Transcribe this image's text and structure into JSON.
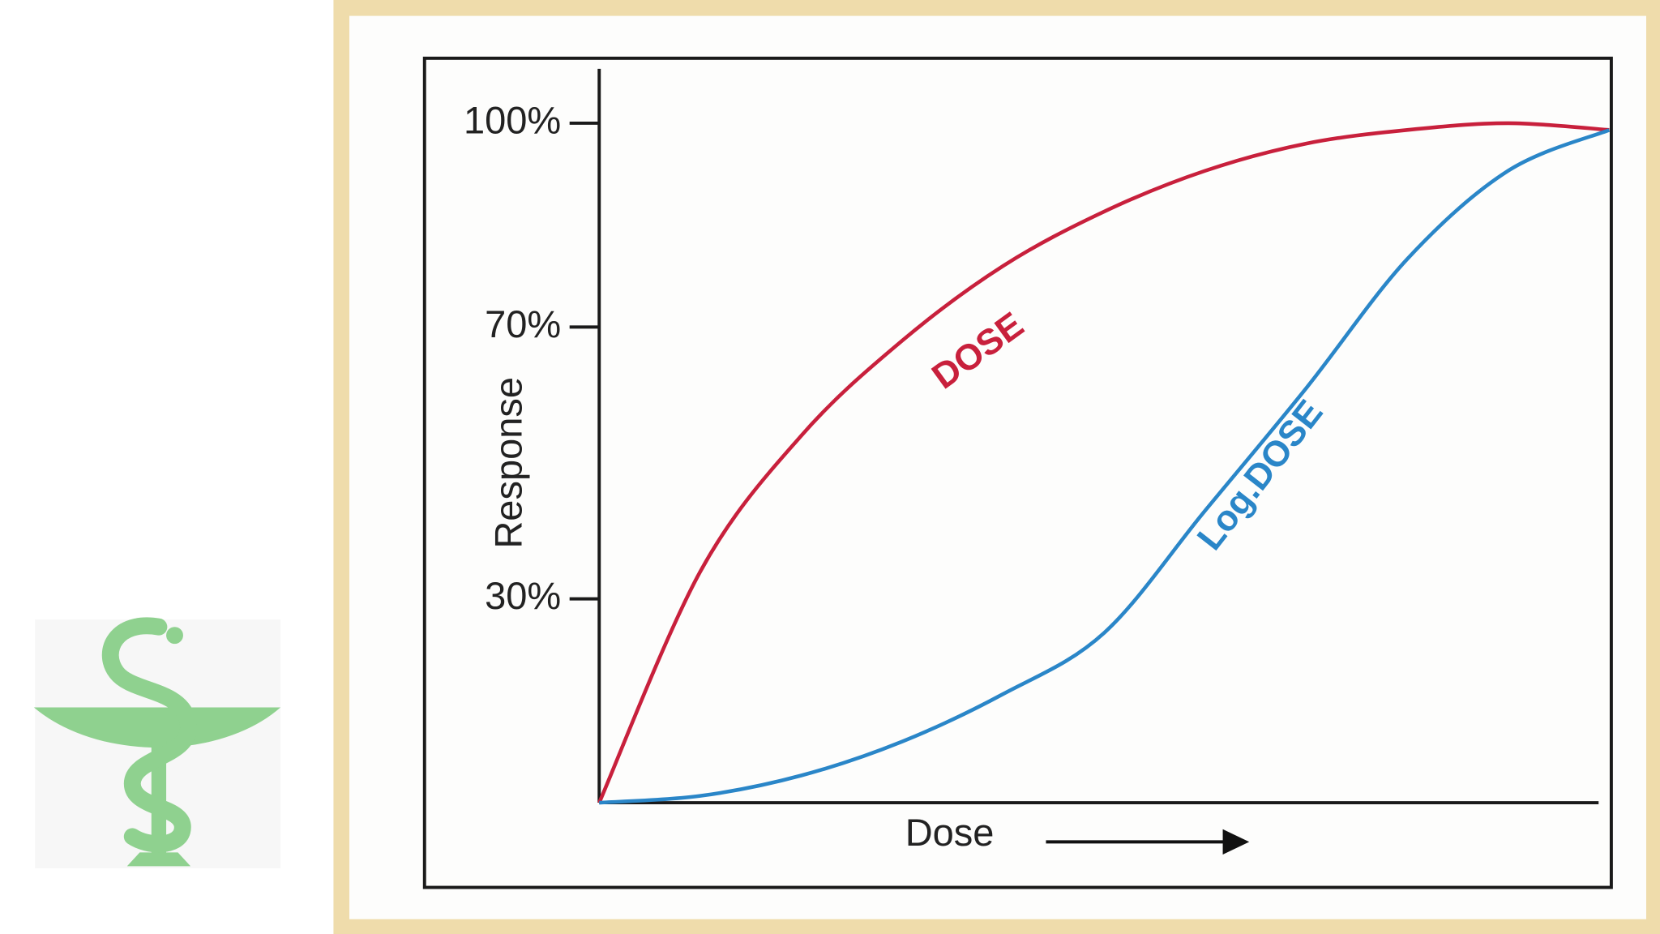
{
  "chart_data": {
    "type": "line",
    "x": [
      0,
      10,
      20,
      30,
      40,
      50,
      60,
      70,
      80,
      90,
      100
    ],
    "xlim": [
      0,
      100
    ],
    "ylim": [
      0,
      108
    ],
    "yticks": [
      {
        "value": 30,
        "label": "30%"
      },
      {
        "value": 70,
        "label": "70%"
      },
      {
        "value": 100,
        "label": "100%"
      }
    ],
    "ylabel": "Response",
    "xlabel": "Dose",
    "series": [
      {
        "name": "DOSE",
        "color": "#c8203c",
        "values": [
          0,
          34,
          54,
          68,
          79,
          87,
          93,
          97,
          99,
          100,
          99
        ]
      },
      {
        "name": "Log.DOSE",
        "color": "#2a86c8",
        "values": [
          0,
          1,
          4,
          9,
          16,
          25,
          43,
          61,
          80,
          93,
          99
        ]
      }
    ]
  }
}
